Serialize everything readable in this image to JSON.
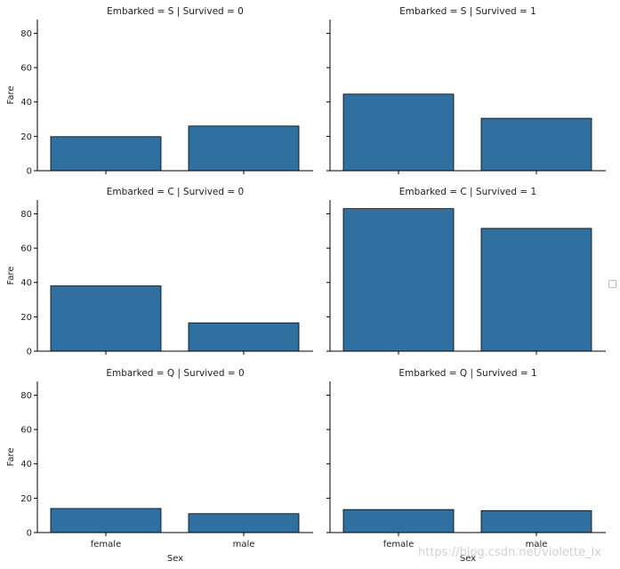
{
  "figure": {
    "watermark": "https://blog.csdn.net/violette_lx"
  },
  "chart_data": [
    {
      "type": "bar",
      "title": "Embarked = S | Survived = 0",
      "categories": [
        "female",
        "male"
      ],
      "values": [
        19.8,
        26.0
      ],
      "xlabel": "",
      "ylabel": "Fare",
      "ylim": [
        0,
        88
      ]
    },
    {
      "type": "bar",
      "title": "Embarked = S | Survived = 1",
      "categories": [
        "female",
        "male"
      ],
      "values": [
        44.6,
        30.5
      ],
      "xlabel": "",
      "ylabel": "",
      "ylim": [
        0,
        88
      ]
    },
    {
      "type": "bar",
      "title": "Embarked = C | Survived = 0",
      "categories": [
        "female",
        "male"
      ],
      "values": [
        38.0,
        16.5
      ],
      "xlabel": "",
      "ylabel": "Fare",
      "ylim": [
        0,
        88
      ]
    },
    {
      "type": "bar",
      "title": "Embarked = C | Survived = 1",
      "categories": [
        "female",
        "male"
      ],
      "values": [
        83.0,
        71.5
      ],
      "xlabel": "",
      "ylabel": "",
      "ylim": [
        0,
        88
      ]
    },
    {
      "type": "bar",
      "title": "Embarked = Q | Survived = 0",
      "categories": [
        "female",
        "male"
      ],
      "values": [
        14.0,
        11.0
      ],
      "xlabel": "Sex",
      "ylabel": "Fare",
      "ylim": [
        0,
        88
      ]
    },
    {
      "type": "bar",
      "title": "Embarked = Q | Survived = 1",
      "categories": [
        "female",
        "male"
      ],
      "values": [
        13.4,
        12.8
      ],
      "xlabel": "Sex",
      "ylabel": "",
      "ylim": [
        0,
        88
      ]
    }
  ],
  "style": {
    "bar_color": "#2f70a1",
    "bar_edge": "#000000",
    "yticks": [
      0,
      20,
      40,
      60,
      80
    ],
    "show_xticklabels_rows": [
      2
    ],
    "show_yticklabels_cols": [
      0
    ],
    "grid": false,
    "legend": "right-center"
  }
}
